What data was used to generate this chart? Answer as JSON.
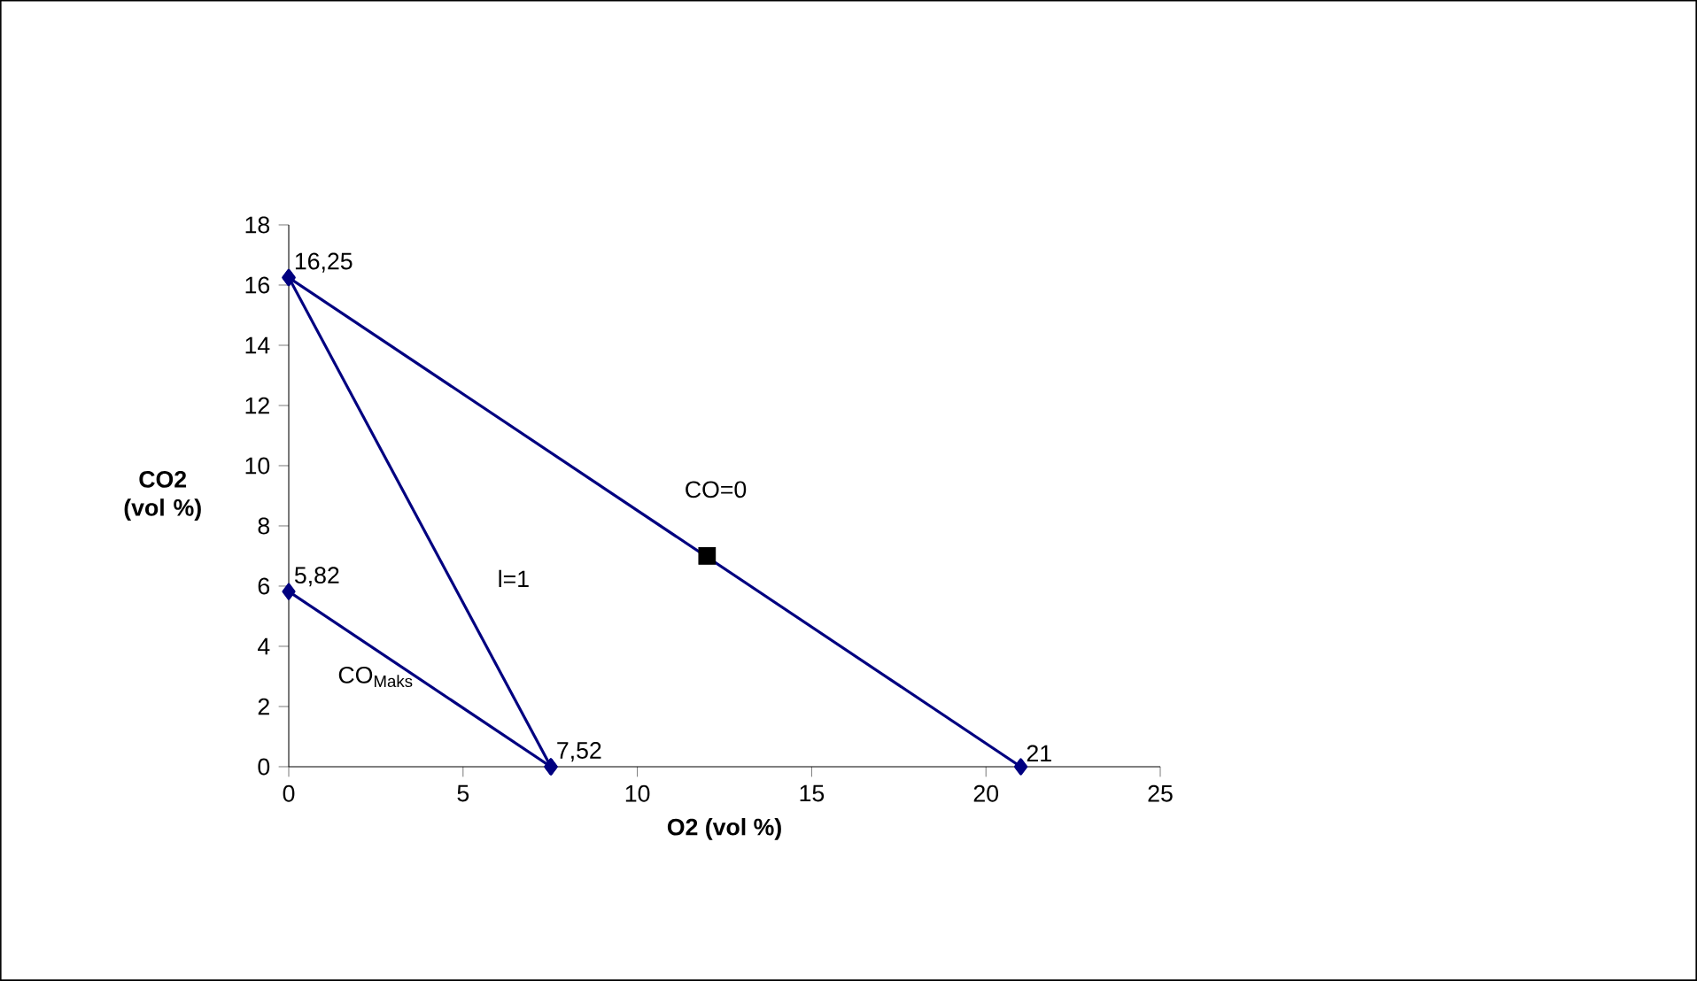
{
  "chart_data": {
    "type": "line",
    "xlabel": "O2 (vol %)",
    "ylabel": "CO2 (vol %)",
    "xlim": [
      0,
      25
    ],
    "xticks": [
      0,
      5,
      10,
      15,
      20,
      25
    ],
    "ylim": [
      0,
      18
    ],
    "yticks": [
      0,
      2,
      4,
      6,
      8,
      10,
      12,
      14,
      16,
      18
    ],
    "grid": false,
    "marker": "diamond",
    "line_style": "solid",
    "series": [
      {
        "color": "#000080",
        "x": [
          0,
          21
        ],
        "values": [
          16.25,
          0
        ],
        "value_labels": [
          "16,25",
          null
        ]
      },
      {
        "color": "#000080",
        "x": [
          0,
          7.52
        ],
        "values": [
          16.25,
          0
        ]
      },
      {
        "color": "#000080",
        "x": [
          0,
          7.52
        ],
        "values": [
          5.82,
          0
        ],
        "value_labels": [
          "5,82",
          null
        ]
      },
      {
        "type": "scatter",
        "color": "#000000",
        "marker": "square",
        "x": [
          12
        ],
        "values": [
          7
        ]
      }
    ],
    "annotations": [
      {
        "text": "21",
        "x": 21,
        "y": 0
      },
      {
        "text": "7,52",
        "x": 7.52,
        "y": 0
      },
      {
        "text": "CO=0",
        "x": 11,
        "y": 7.74
      },
      {
        "text": "l=1",
        "x": 5.5,
        "y": 4.37
      },
      {
        "text": "CO$_{Maks}$",
        "x": 2.5,
        "y": 3.89
      }
    ]
  }
}
